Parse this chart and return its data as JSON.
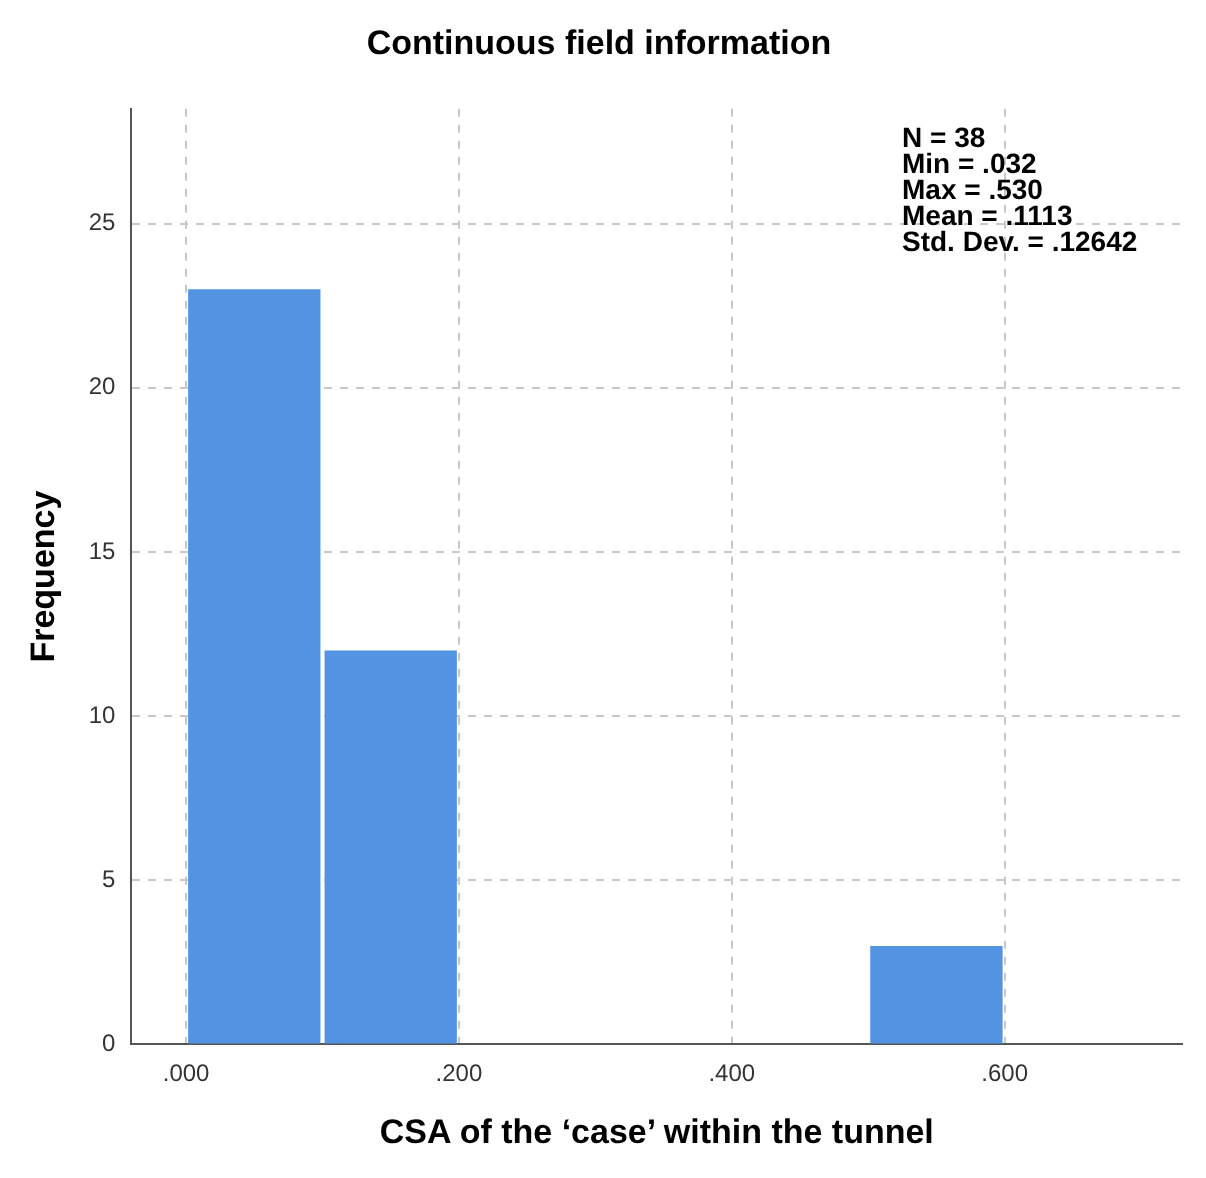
{
  "chart_data": {
    "type": "histogram",
    "title": "Continuous field information",
    "xlabel": "CSA of the ‘case’ within the tunnel",
    "ylabel": "Frequency",
    "bins": [
      0,
      0.1,
      0.2,
      0.3,
      0.4,
      0.5,
      0.6
    ],
    "values": [
      23,
      12,
      0,
      0,
      0,
      3
    ],
    "color": "#5294e2",
    "xlim": [
      -0.04,
      0.73
    ],
    "xticks": [
      {
        "value": 0,
        "label": ".000"
      },
      {
        "value": 0.2,
        "label": ".200"
      },
      {
        "value": 0.4,
        "label": ".400"
      },
      {
        "value": 0.6,
        "label": ".600"
      }
    ],
    "ylim": [
      0,
      28.5
    ],
    "yticks": [
      0,
      5,
      10,
      15,
      20,
      25
    ],
    "grid": true,
    "annotations": [
      "N = 38\nMin = .032\nMax = .530\nMean = .1113\nStd. Dev. = .12642"
    ]
  }
}
